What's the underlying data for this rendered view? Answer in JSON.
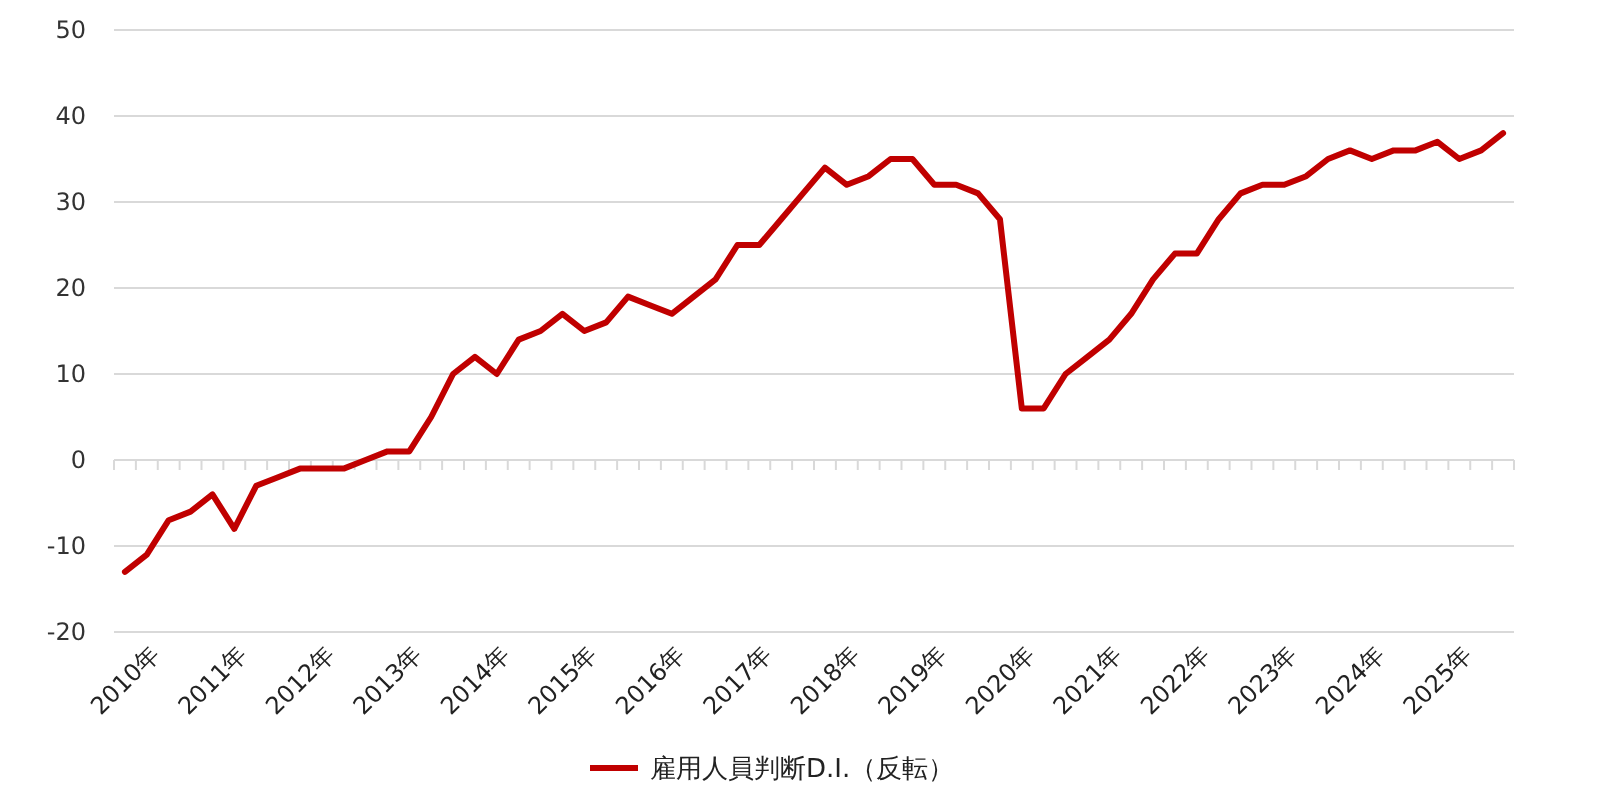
{
  "chart_data": {
    "type": "line",
    "categories": [
      "2010年",
      null,
      null,
      null,
      "2011年",
      null,
      null,
      null,
      "2012年",
      null,
      null,
      null,
      "2013年",
      null,
      null,
      null,
      "2014年",
      null,
      null,
      null,
      "2015年",
      null,
      null,
      null,
      "2016年",
      null,
      null,
      null,
      "2017年",
      null,
      null,
      null,
      "2018年",
      null,
      null,
      null,
      "2019年",
      null,
      null,
      null,
      "2020年",
      null,
      null,
      null,
      "2021年",
      null,
      null,
      null,
      "2022年",
      null,
      null,
      null,
      "2023年",
      null,
      null,
      null,
      "2024年",
      null,
      null,
      null,
      "2025年",
      null,
      null,
      null
    ],
    "series": [
      {
        "name": "雇用人員判断D.I.（反転）",
        "color": "#c00000",
        "values": [
          -13,
          -11,
          -7,
          -6,
          -4,
          -8,
          -3,
          -2,
          -1,
          -1,
          -1,
          0,
          1,
          1,
          5,
          10,
          12,
          10,
          14,
          15,
          17,
          15,
          16,
          19,
          18,
          17,
          19,
          21,
          25,
          25,
          28,
          31,
          34,
          32,
          33,
          35,
          35,
          32,
          32,
          31,
          28,
          6,
          6,
          10,
          12,
          14,
          17,
          21,
          24,
          24,
          28,
          31,
          32,
          32,
          33,
          35,
          36,
          35,
          36,
          36,
          37,
          35,
          36,
          38
        ]
      }
    ],
    "ylim": [
      -20,
      50
    ],
    "yticks": [
      -20,
      -10,
      0,
      10,
      20,
      30,
      40,
      50
    ],
    "grid": "y",
    "legend": "bottom",
    "marker": "none",
    "line_style": "solid"
  }
}
